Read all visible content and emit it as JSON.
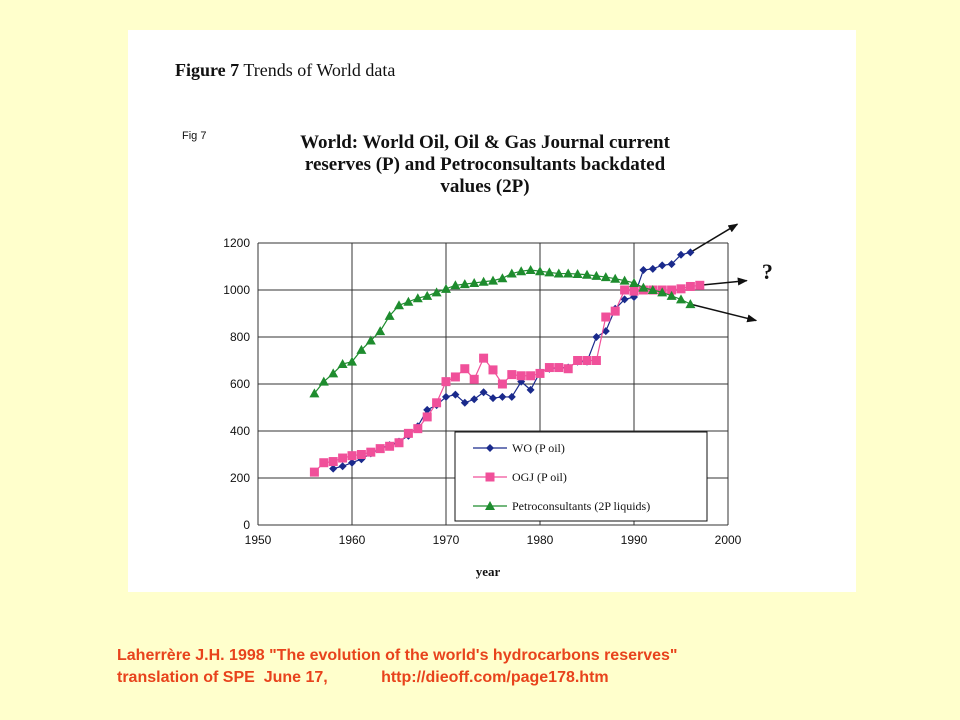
{
  "figure_caption": {
    "label": "Figure 7",
    "text": "Trends of World data"
  },
  "fig_label": "Fig 7",
  "chart_title_lines": [
    "World: World Oil, Oil & Gas Journal current",
    "reserves (P) and Petroconsultants backdated",
    "values (2P)"
  ],
  "question_mark": "?",
  "citation_lines": [
    "Laherrère J.H. 1998 \"The evolution of the world's hydrocarbons reserves\"",
    "translation of SPE  June 17,            http://dieoff.com/page178.htm"
  ],
  "colors": {
    "background": "#FFFFCC",
    "citation": "#E8431C",
    "wo": "#1A2A8C",
    "ogj": "#F0509A",
    "petro": "#1E8C2E"
  },
  "chart_data": {
    "type": "line",
    "xlabel": "year",
    "ylabel": "",
    "xlim": [
      1950,
      2000
    ],
    "ylim": [
      0,
      1200
    ],
    "x_ticks": [
      "1950",
      "1960",
      "1970",
      "1980",
      "1990",
      "2000"
    ],
    "y_ticks": [
      "0",
      "200",
      "400",
      "600",
      "800",
      "1000",
      "1200"
    ],
    "grid": true,
    "legend_position": "bottom-right",
    "series": [
      {
        "name": "WO (P oil)",
        "marker": "diamond",
        "color": "#1A2A8C",
        "points": [
          [
            1958,
            240
          ],
          [
            1959,
            250
          ],
          [
            1960,
            265
          ],
          [
            1961,
            280
          ],
          [
            1962,
            305
          ],
          [
            1963,
            325
          ],
          [
            1964,
            340
          ],
          [
            1965,
            355
          ],
          [
            1966,
            380
          ],
          [
            1967,
            420
          ],
          [
            1968,
            490
          ],
          [
            1969,
            510
          ],
          [
            1970,
            545
          ],
          [
            1971,
            555
          ],
          [
            1972,
            520
          ],
          [
            1973,
            535
          ],
          [
            1974,
            565
          ],
          [
            1975,
            540
          ],
          [
            1976,
            545
          ],
          [
            1977,
            545
          ],
          [
            1978,
            610
          ],
          [
            1979,
            575
          ],
          [
            1980,
            650
          ],
          [
            1981,
            665
          ],
          [
            1982,
            670
          ],
          [
            1983,
            670
          ],
          [
            1984,
            695
          ],
          [
            1985,
            695
          ],
          [
            1986,
            800
          ],
          [
            1987,
            825
          ],
          [
            1988,
            920
          ],
          [
            1989,
            960
          ],
          [
            1990,
            970
          ],
          [
            1991,
            1085
          ],
          [
            1992,
            1090
          ],
          [
            1993,
            1105
          ],
          [
            1994,
            1110
          ],
          [
            1995,
            1150
          ],
          [
            1996,
            1160
          ]
        ]
      },
      {
        "name": "OGJ (P oil)",
        "marker": "square",
        "color": "#F0509A",
        "points": [
          [
            1956,
            225
          ],
          [
            1957,
            265
          ],
          [
            1958,
            270
          ],
          [
            1959,
            285
          ],
          [
            1960,
            295
          ],
          [
            1961,
            300
          ],
          [
            1962,
            310
          ],
          [
            1963,
            325
          ],
          [
            1964,
            335
          ],
          [
            1965,
            350
          ],
          [
            1966,
            390
          ],
          [
            1967,
            410
          ],
          [
            1968,
            460
          ],
          [
            1969,
            520
          ],
          [
            1970,
            610
          ],
          [
            1971,
            630
          ],
          [
            1972,
            665
          ],
          [
            1973,
            620
          ],
          [
            1974,
            710
          ],
          [
            1975,
            660
          ],
          [
            1976,
            600
          ],
          [
            1977,
            640
          ],
          [
            1978,
            635
          ],
          [
            1979,
            635
          ],
          [
            1980,
            645
          ],
          [
            1981,
            670
          ],
          [
            1982,
            670
          ],
          [
            1983,
            665
          ],
          [
            1984,
            700
          ],
          [
            1985,
            700
          ],
          [
            1986,
            700
          ],
          [
            1987,
            885
          ],
          [
            1988,
            910
          ],
          [
            1989,
            1000
          ],
          [
            1990,
            995
          ],
          [
            1991,
            1000
          ],
          [
            1992,
            1000
          ],
          [
            1993,
            1000
          ],
          [
            1994,
            1000
          ],
          [
            1995,
            1005
          ],
          [
            1996,
            1015
          ],
          [
            1997,
            1020
          ]
        ]
      },
      {
        "name": "Petroconsultants (2P liquids)",
        "marker": "triangle",
        "color": "#1E8C2E",
        "points": [
          [
            1956,
            560
          ],
          [
            1957,
            610
          ],
          [
            1958,
            645
          ],
          [
            1959,
            685
          ],
          [
            1960,
            695
          ],
          [
            1961,
            745
          ],
          [
            1962,
            785
          ],
          [
            1963,
            825
          ],
          [
            1964,
            890
          ],
          [
            1965,
            935
          ],
          [
            1966,
            950
          ],
          [
            1967,
            965
          ],
          [
            1968,
            975
          ],
          [
            1969,
            990
          ],
          [
            1970,
            1005
          ],
          [
            1971,
            1020
          ],
          [
            1972,
            1025
          ],
          [
            1973,
            1030
          ],
          [
            1974,
            1035
          ],
          [
            1975,
            1040
          ],
          [
            1976,
            1050
          ],
          [
            1977,
            1070
          ],
          [
            1978,
            1080
          ],
          [
            1979,
            1085
          ],
          [
            1980,
            1080
          ],
          [
            1981,
            1075
          ],
          [
            1982,
            1070
          ],
          [
            1983,
            1070
          ],
          [
            1984,
            1068
          ],
          [
            1985,
            1065
          ],
          [
            1986,
            1060
          ],
          [
            1987,
            1055
          ],
          [
            1988,
            1048
          ],
          [
            1989,
            1040
          ],
          [
            1990,
            1030
          ],
          [
            1991,
            1010
          ],
          [
            1992,
            1000
          ],
          [
            1993,
            990
          ],
          [
            1994,
            975
          ],
          [
            1995,
            960
          ],
          [
            1996,
            940
          ]
        ]
      }
    ],
    "projections": [
      {
        "series": "WO (P oil)",
        "from": [
          1996,
          1160
        ],
        "to": [
          2001,
          1280
        ]
      },
      {
        "series": "OGJ (P oil)",
        "from": [
          1997,
          1020
        ],
        "to": [
          2002,
          1040
        ]
      },
      {
        "series": "Petroconsultants (2P liquids)",
        "from": [
          1996,
          940
        ],
        "to": [
          2003,
          870
        ]
      }
    ]
  }
}
